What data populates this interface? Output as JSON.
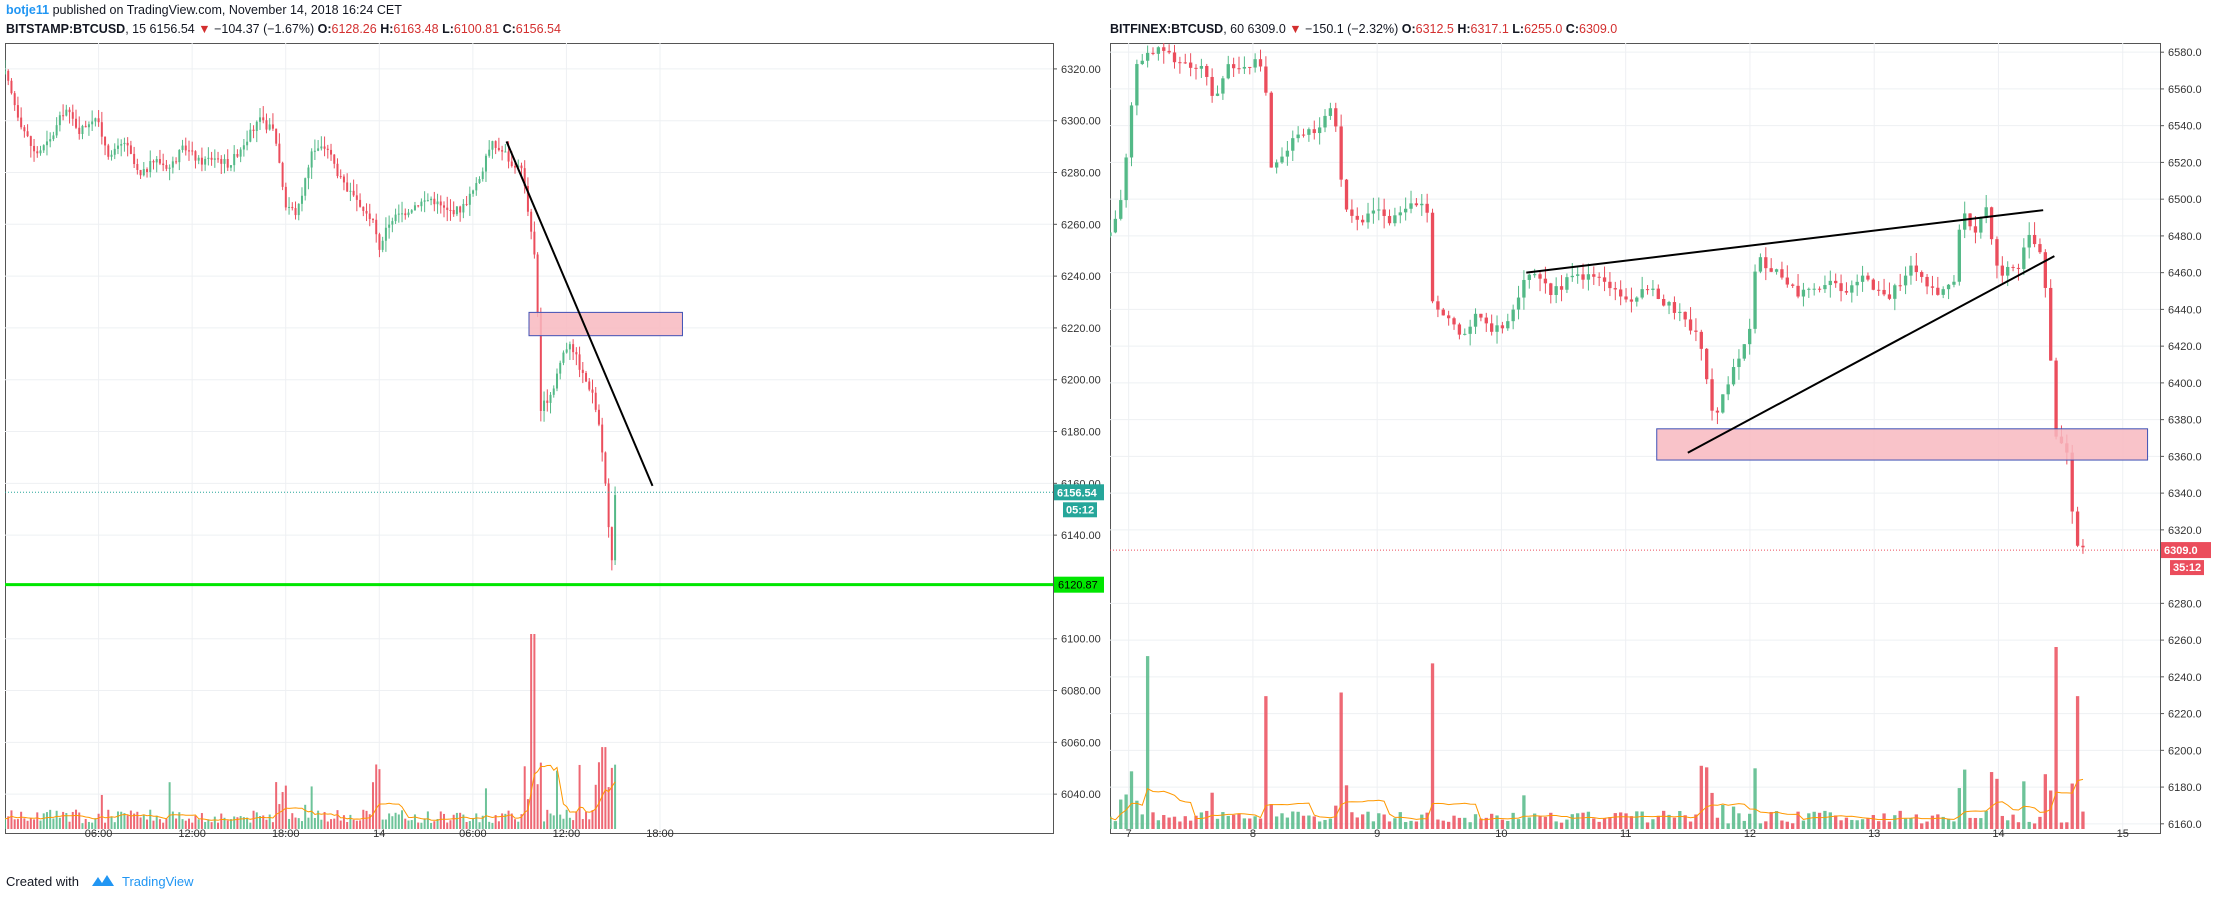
{
  "header": {
    "author": "botje11",
    "published_text": "published on TradingView.com, November 14, 2018 16:24 CET"
  },
  "footer": {
    "created_with": "Created with",
    "brand": "TradingView"
  },
  "colors": {
    "up": "#53b987",
    "down": "#eb4d5c",
    "ma": "#ff9800",
    "zone_fill": "#f8b8c0",
    "zone_border": "#3f51b5",
    "support": "#00e600"
  },
  "chart_data": [
    {
      "type": "candlestick",
      "symbol": "BITSTAMP:BTCUSD",
      "interval": "15",
      "last": "6156.54",
      "change": "−104.37 (−1.67%)",
      "open_label": "O:",
      "open": "6128.26",
      "high_label": "H:",
      "high": "6163.48",
      "low_label": "L:",
      "low": "6100.81",
      "close_label": "C:",
      "close": "6156.54",
      "price_labels": [
        "6320.00",
        "6300.00",
        "6280.00",
        "6260.00",
        "6240.00",
        "6220.00",
        "6200.00",
        "6180.00",
        "6160.00",
        "6140.00",
        "6100.00",
        "6080.00",
        "6060.00",
        "6040.00"
      ],
      "ylim": [
        6025,
        6330
      ],
      "xlim": [
        0.0,
        2.8
      ],
      "time_labels": [
        {
          "t": 0.25,
          "label": "06:00"
        },
        {
          "t": 0.5,
          "label": "12:00"
        },
        {
          "t": 0.75,
          "label": "18:00"
        },
        {
          "t": 1.0,
          "label": "14"
        },
        {
          "t": 1.25,
          "label": "06:00"
        },
        {
          "t": 1.5,
          "label": "12:00"
        },
        {
          "t": 1.75,
          "label": "18:00"
        }
      ],
      "price_anchors": [
        [
          0.0,
          6318
        ],
        [
          0.04,
          6300
        ],
        [
          0.08,
          6287
        ],
        [
          0.12,
          6292
        ],
        [
          0.16,
          6305
        ],
        [
          0.2,
          6296
        ],
        [
          0.24,
          6302
        ],
        [
          0.28,
          6286
        ],
        [
          0.32,
          6292
        ],
        [
          0.36,
          6278
        ],
        [
          0.4,
          6285
        ],
        [
          0.44,
          6282
        ],
        [
          0.48,
          6290
        ],
        [
          0.52,
          6284
        ],
        [
          0.56,
          6286
        ],
        [
          0.6,
          6283
        ],
        [
          0.64,
          6292
        ],
        [
          0.68,
          6300
        ],
        [
          0.72,
          6296
        ],
        [
          0.75,
          6268
        ],
        [
          0.78,
          6264
        ],
        [
          0.82,
          6288
        ],
        [
          0.86,
          6290
        ],
        [
          0.9,
          6276
        ],
        [
          0.94,
          6268
        ],
        [
          0.98,
          6262
        ],
        [
          1.0,
          6251
        ],
        [
          1.03,
          6262
        ],
        [
          1.06,
          6264
        ],
        [
          1.1,
          6268
        ],
        [
          1.14,
          6270
        ],
        [
          1.18,
          6265
        ],
        [
          1.22,
          6266
        ],
        [
          1.26,
          6275
        ],
        [
          1.3,
          6291
        ],
        [
          1.34,
          6287
        ],
        [
          1.36,
          6280
        ],
        [
          1.38,
          6283
        ],
        [
          1.4,
          6262
        ],
        [
          1.42,
          6242
        ],
        [
          1.43,
          6188
        ],
        [
          1.46,
          6195
        ],
        [
          1.49,
          6210
        ],
        [
          1.51,
          6215
        ],
        [
          1.53,
          6207
        ],
        [
          1.55,
          6200
        ],
        [
          1.57,
          6195
        ],
        [
          1.59,
          6180
        ],
        [
          1.6,
          6168
        ],
        [
          1.62,
          6128
        ],
        [
          1.63,
          6156
        ]
      ],
      "last_price": 6156.54,
      "last_price_label": "6156.54",
      "countdown": "05:12",
      "support": {
        "price": 6120.87,
        "label": "6120.87"
      },
      "zone": {
        "t0": 1.4,
        "t1": 1.81,
        "p0": 6217,
        "p1": 6226
      },
      "trendlines": [
        {
          "t0": 1.34,
          "p0": 6292,
          "t1": 1.73,
          "p1": 6159
        }
      ],
      "volume_spikes": [
        {
          "t": 1.41,
          "v": 1.0
        },
        {
          "t": 1.6,
          "v": 0.42
        },
        {
          "t": 1.63,
          "v": 0.33
        },
        {
          "t": 0.44,
          "v": 0.24
        },
        {
          "t": 0.98,
          "v": 0.24
        }
      ]
    },
    {
      "type": "candlestick",
      "symbol": "BITFINEX:BTCUSD",
      "interval": "60",
      "last": "6309.0",
      "change": "−150.1 (−2.32%)",
      "open_label": "O:",
      "open": "6312.5",
      "high_label": "H:",
      "high": "6317.1",
      "low_label": "L:",
      "low": "6255.0",
      "close_label": "C:",
      "close": "6309.0",
      "price_labels": [
        "6580.0",
        "6560.0",
        "6540.0",
        "6520.0",
        "6500.0",
        "6480.0",
        "6460.0",
        "6440.0",
        "6420.0",
        "6400.0",
        "6380.0",
        "6360.0",
        "6340.0",
        "6320.0",
        "6280.0",
        "6260.0",
        "6240.0",
        "6220.0",
        "6200.0",
        "6180.0",
        "6160.0"
      ],
      "ylim": [
        6155,
        6585
      ],
      "xlim": [
        6.85,
        15.3
      ],
      "time_labels": [
        {
          "t": 7,
          "label": "7"
        },
        {
          "t": 8,
          "label": "8"
        },
        {
          "t": 9,
          "label": "9"
        },
        {
          "t": 10,
          "label": "10"
        },
        {
          "t": 11,
          "label": "11"
        },
        {
          "t": 12,
          "label": "12"
        },
        {
          "t": 13,
          "label": "13"
        },
        {
          "t": 14,
          "label": "14"
        },
        {
          "t": 15,
          "label": "15"
        }
      ],
      "price_anchors": [
        [
          6.85,
          6480
        ],
        [
          6.95,
          6500
        ],
        [
          7.05,
          6570
        ],
        [
          7.2,
          6582
        ],
        [
          7.4,
          6575
        ],
        [
          7.6,
          6570
        ],
        [
          7.7,
          6552
        ],
        [
          7.8,
          6575
        ],
        [
          7.9,
          6570
        ],
        [
          8.05,
          6575
        ],
        [
          8.1,
          6560
        ],
        [
          8.15,
          6515
        ],
        [
          8.3,
          6530
        ],
        [
          8.4,
          6535
        ],
        [
          8.55,
          6540
        ],
        [
          8.65,
          6550
        ],
        [
          8.7,
          6515
        ],
        [
          8.75,
          6495
        ],
        [
          8.9,
          6488
        ],
        [
          9.0,
          6495
        ],
        [
          9.1,
          6485
        ],
        [
          9.2,
          6495
        ],
        [
          9.3,
          6498
        ],
        [
          9.4,
          6495
        ],
        [
          9.45,
          6440
        ],
        [
          9.55,
          6435
        ],
        [
          9.7,
          6425
        ],
        [
          9.8,
          6440
        ],
        [
          9.9,
          6428
        ],
        [
          10.0,
          6430
        ],
        [
          10.1,
          6440
        ],
        [
          10.2,
          6460
        ],
        [
          10.4,
          6450
        ],
        [
          10.6,
          6458
        ],
        [
          10.8,
          6457
        ],
        [
          11.0,
          6445
        ],
        [
          11.2,
          6450
        ],
        [
          11.4,
          6440
        ],
        [
          11.6,
          6425
        ],
        [
          11.7,
          6380
        ],
        [
          11.8,
          6395
        ],
        [
          12.0,
          6430
        ],
        [
          12.05,
          6470
        ],
        [
          12.2,
          6460
        ],
        [
          12.4,
          6448
        ],
        [
          12.6,
          6455
        ],
        [
          12.8,
          6450
        ],
        [
          12.9,
          6460
        ],
        [
          13.1,
          6445
        ],
        [
          13.3,
          6462
        ],
        [
          13.5,
          6450
        ],
        [
          13.65,
          6455
        ],
        [
          13.7,
          6498
        ],
        [
          13.8,
          6480
        ],
        [
          13.9,
          6495
        ],
        [
          14.0,
          6460
        ],
        [
          14.15,
          6462
        ],
        [
          14.25,
          6480
        ],
        [
          14.35,
          6470
        ],
        [
          14.4,
          6440
        ],
        [
          14.45,
          6372
        ],
        [
          14.55,
          6362
        ],
        [
          14.62,
          6312
        ],
        [
          14.68,
          6309
        ]
      ],
      "last_price": 6309.0,
      "last_price_label": "6309.0",
      "countdown": "35:12",
      "zone": {
        "t0": 11.25,
        "t1": 15.2,
        "p0": 6358,
        "p1": 6375
      },
      "trendlines": [
        {
          "t0": 10.2,
          "p0": 6460,
          "t1": 14.36,
          "p1": 6494
        },
        {
          "t0": 11.5,
          "p0": 6362,
          "t1": 14.45,
          "p1": 6469
        }
      ],
      "volume_spikes": [
        {
          "t": 14.45,
          "v": 1.0
        },
        {
          "t": 7.15,
          "v": 0.95
        },
        {
          "t": 9.45,
          "v": 0.91
        },
        {
          "t": 8.1,
          "v": 0.73
        },
        {
          "t": 8.7,
          "v": 0.75
        },
        {
          "t": 14.62,
          "v": 0.73
        }
      ]
    }
  ]
}
